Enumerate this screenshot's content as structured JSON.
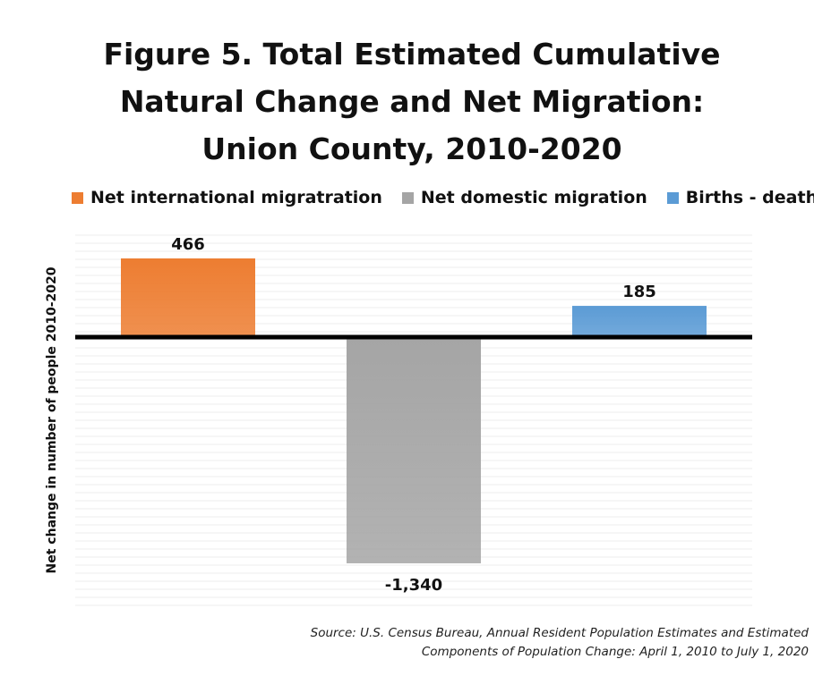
{
  "chart_data": {
    "type": "bar",
    "title_lines": [
      "Figure 5. Total Estimated Cumulative",
      "Natural Change and Net Migration:",
      "Union County, 2010-2020"
    ],
    "ylabel": "Net change in number of people 2010-2020",
    "categories": [
      "Net international migratration",
      "Net domestic migration",
      "Births  - deaths"
    ],
    "values": [
      466,
      -1340,
      185
    ],
    "value_labels": [
      "466",
      "-1,340",
      "185"
    ],
    "colors": [
      "#ed7d31",
      "#a5a5a5",
      "#5b9bd5"
    ],
    "legend": [
      {
        "label": "Net international migratration",
        "color": "#ed7d31"
      },
      {
        "label": "Net domestic migration",
        "color": "#a5a5a5"
      },
      {
        "label": "Births  - deaths",
        "color": "#5b9bd5"
      }
    ],
    "legend_position": "top",
    "ylim": [
      -1600,
      600
    ],
    "grid": true
  },
  "source_lines": [
    "Source: U.S. Census Bureau, Annual Resident Population Estimates and Estimated",
    "Components of Population Change: April 1, 2010 to July 1, 2020"
  ]
}
